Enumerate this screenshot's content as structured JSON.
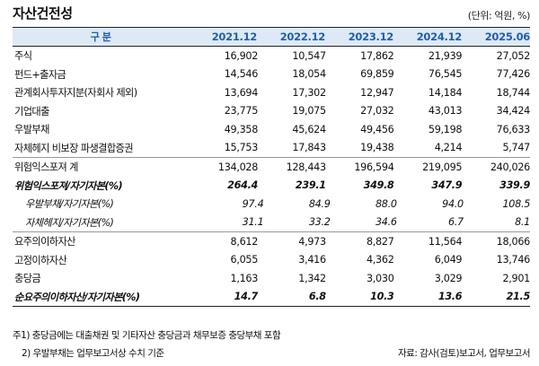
{
  "title": "자산건전성",
  "unit": "(단위: 억원, %)",
  "table": {
    "header_label": "구 분",
    "columns": [
      "2021.12",
      "2022.12",
      "2023.12",
      "2024.12",
      "2025.06"
    ],
    "rows": [
      {
        "label": "주식",
        "values": [
          "16,902",
          "10,547",
          "17,862",
          "21,939",
          "27,052"
        ]
      },
      {
        "label": "펀드+출자금",
        "values": [
          "14,546",
          "18,054",
          "69,859",
          "76,545",
          "77,426"
        ]
      },
      {
        "label": "관계회사투자지분(자회사 제외)",
        "values": [
          "13,694",
          "17,302",
          "12,947",
          "14,184",
          "18,744"
        ]
      },
      {
        "label": "기업대출",
        "values": [
          "23,775",
          "19,075",
          "27,032",
          "43,013",
          "34,424"
        ]
      },
      {
        "label": "우발부채",
        "values": [
          "49,358",
          "45,624",
          "49,456",
          "59,198",
          "76,633"
        ]
      },
      {
        "label": "자체헤지 비보장 파생결합증권",
        "values": [
          "15,753",
          "17,843",
          "19,438",
          "4,214",
          "5,747"
        ]
      },
      {
        "label": "위험익스포져 계",
        "values": [
          "134,028",
          "128,443",
          "196,594",
          "219,095",
          "240,026"
        ]
      },
      {
        "label": "위험익스포져/자기자본(%)",
        "values": [
          "264.4",
          "239.1",
          "349.8",
          "347.9",
          "339.9"
        ]
      },
      {
        "label": "우발부채/자기자본(%)",
        "values": [
          "97.4",
          "84.9",
          "88.0",
          "94.0",
          "108.5"
        ]
      },
      {
        "label": "자체헤지/자기자본(%)",
        "values": [
          "31.1",
          "33.2",
          "34.6",
          "6.7",
          "8.1"
        ]
      },
      {
        "label": "요주의이하자산",
        "values": [
          "8,612",
          "4,973",
          "8,827",
          "11,564",
          "18,066"
        ]
      },
      {
        "label": "고정이하자산",
        "values": [
          "6,055",
          "3,416",
          "4,362",
          "6,049",
          "13,746"
        ]
      },
      {
        "label": "충당금",
        "values": [
          "1,163",
          "1,342",
          "3,030",
          "3,029",
          "2,901"
        ]
      },
      {
        "label": "순요주의이하자산/자기자본(%)",
        "values": [
          "14.7",
          "6.8",
          "10.3",
          "13.6",
          "21.5"
        ]
      }
    ]
  },
  "footnotes": {
    "note1": "주1) 충당금에는 대출채권 및 기타자산 충당금과 채무보증 충당부채 포함",
    "note2": "2) 우발부채는 업무보고서상 수치 기준",
    "source": "자료: 감사(검토)보고서, 업무보고서"
  }
}
